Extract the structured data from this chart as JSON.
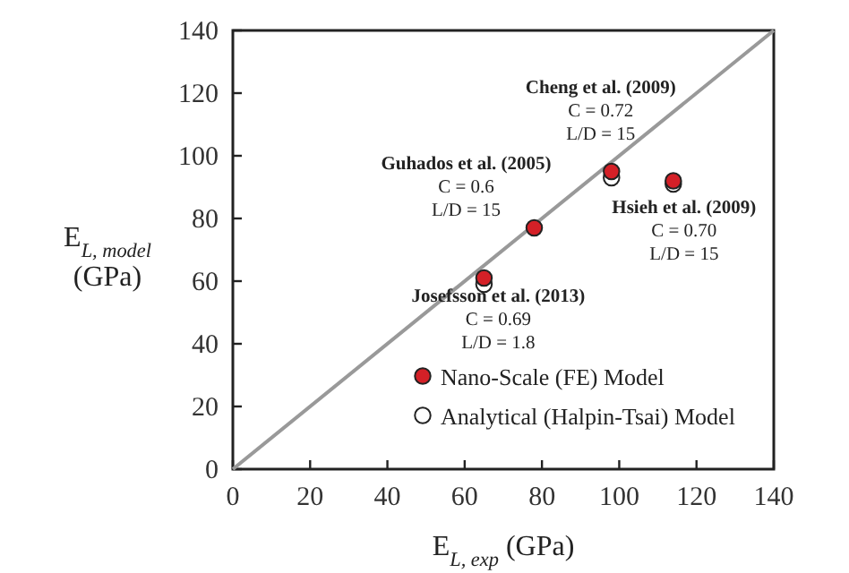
{
  "chart_data": {
    "type": "scatter",
    "xlabel": "E$_{L, exp}$ (GPa)",
    "ylabel": "E$_{L, model}$\n(GPa)",
    "xlim": [
      0,
      140
    ],
    "ylim": [
      0,
      140
    ],
    "xticks": [
      0,
      20,
      40,
      60,
      80,
      100,
      120,
      140
    ],
    "yticks": [
      0,
      20,
      40,
      60,
      80,
      100,
      120,
      140
    ],
    "grid": false,
    "legend": "bottom right",
    "marker": "circle",
    "x": [
      65,
      78,
      98,
      114
    ],
    "series": [
      {
        "type": "line",
        "color": "#999999",
        "x": [
          0,
          140
        ],
        "values": [
          0,
          140
        ],
        "line_style": "solid",
        "marker": "none"
      },
      {
        "name": "Nano-Scale (FE) Model",
        "color": "#d42027",
        "values": [
          61,
          77,
          95,
          92
        ]
      },
      {
        "name": "Analytical (Halpin-Tsai) Model",
        "color": "#ffffff",
        "values": [
          59,
          null,
          93,
          91
        ]
      }
    ],
    "annotations": [
      {
        "text": "Cheng et al. (2009)\nC = 0.72\nL/D = 15",
        "x": 98,
        "y": 95
      },
      {
        "text": "Guhados et al. (2005)\nC = 0.6\nL/D = 15",
        "x": 78,
        "y": 77
      },
      {
        "text": "Hsieh et al. (2009)\nC = 0.70\nL/D = 15",
        "x": 114,
        "y": 92
      },
      {
        "text": "Josefsson et al. (2013)\nC = 0.69\nL/D = 1.8",
        "x": 65,
        "y": 61
      }
    ]
  }
}
